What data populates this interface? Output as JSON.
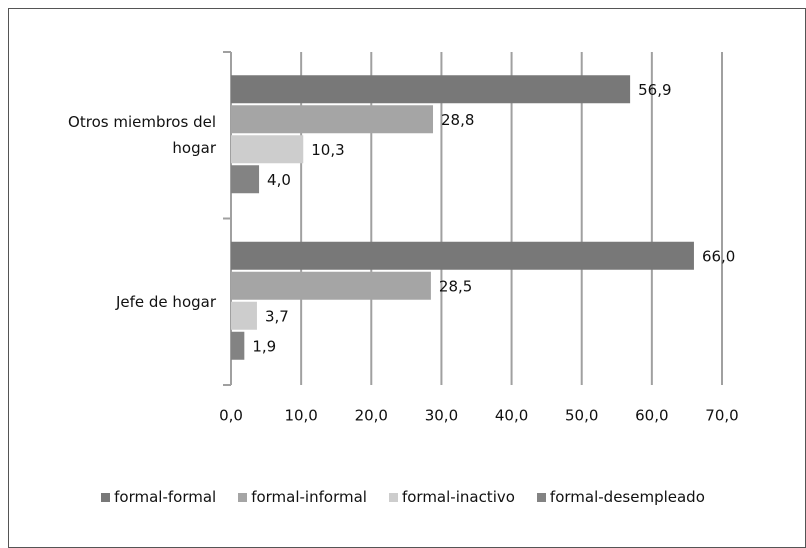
{
  "chart_data": {
    "type": "bar",
    "orientation": "horizontal",
    "categories": [
      "Otros miembros del hogar",
      "Jefe de hogar"
    ],
    "series": [
      {
        "name": "formal-formal",
        "color": "#787878",
        "values": [
          56.9,
          66.0
        ],
        "value_labels": [
          "56,9",
          "66,0"
        ]
      },
      {
        "name": "formal-informal",
        "color": "#a5a5a5",
        "values": [
          28.8,
          28.5
        ],
        "value_labels": [
          "28,8",
          "28,5"
        ]
      },
      {
        "name": "formal-inactivo",
        "color": "#cdcdcd",
        "values": [
          10.3,
          3.7
        ],
        "value_labels": [
          "10,3",
          "3,7"
        ]
      },
      {
        "name": "formal-desempleado",
        "color": "#838383",
        "values": [
          4.0,
          1.9
        ],
        "value_labels": [
          "4,0",
          "1,9"
        ]
      }
    ],
    "xlim": [
      0,
      70
    ],
    "xticks": [
      {
        "value": 0,
        "label": "0,0"
      },
      {
        "value": 10,
        "label": "10,0"
      },
      {
        "value": 20,
        "label": "20,0"
      },
      {
        "value": 30,
        "label": "30,0"
      },
      {
        "value": 40,
        "label": "40,0"
      },
      {
        "value": 50,
        "label": "50,0"
      },
      {
        "value": 60,
        "label": "60,0"
      },
      {
        "value": 70,
        "label": "70,0"
      }
    ],
    "grid": true,
    "legend": "bottom"
  }
}
